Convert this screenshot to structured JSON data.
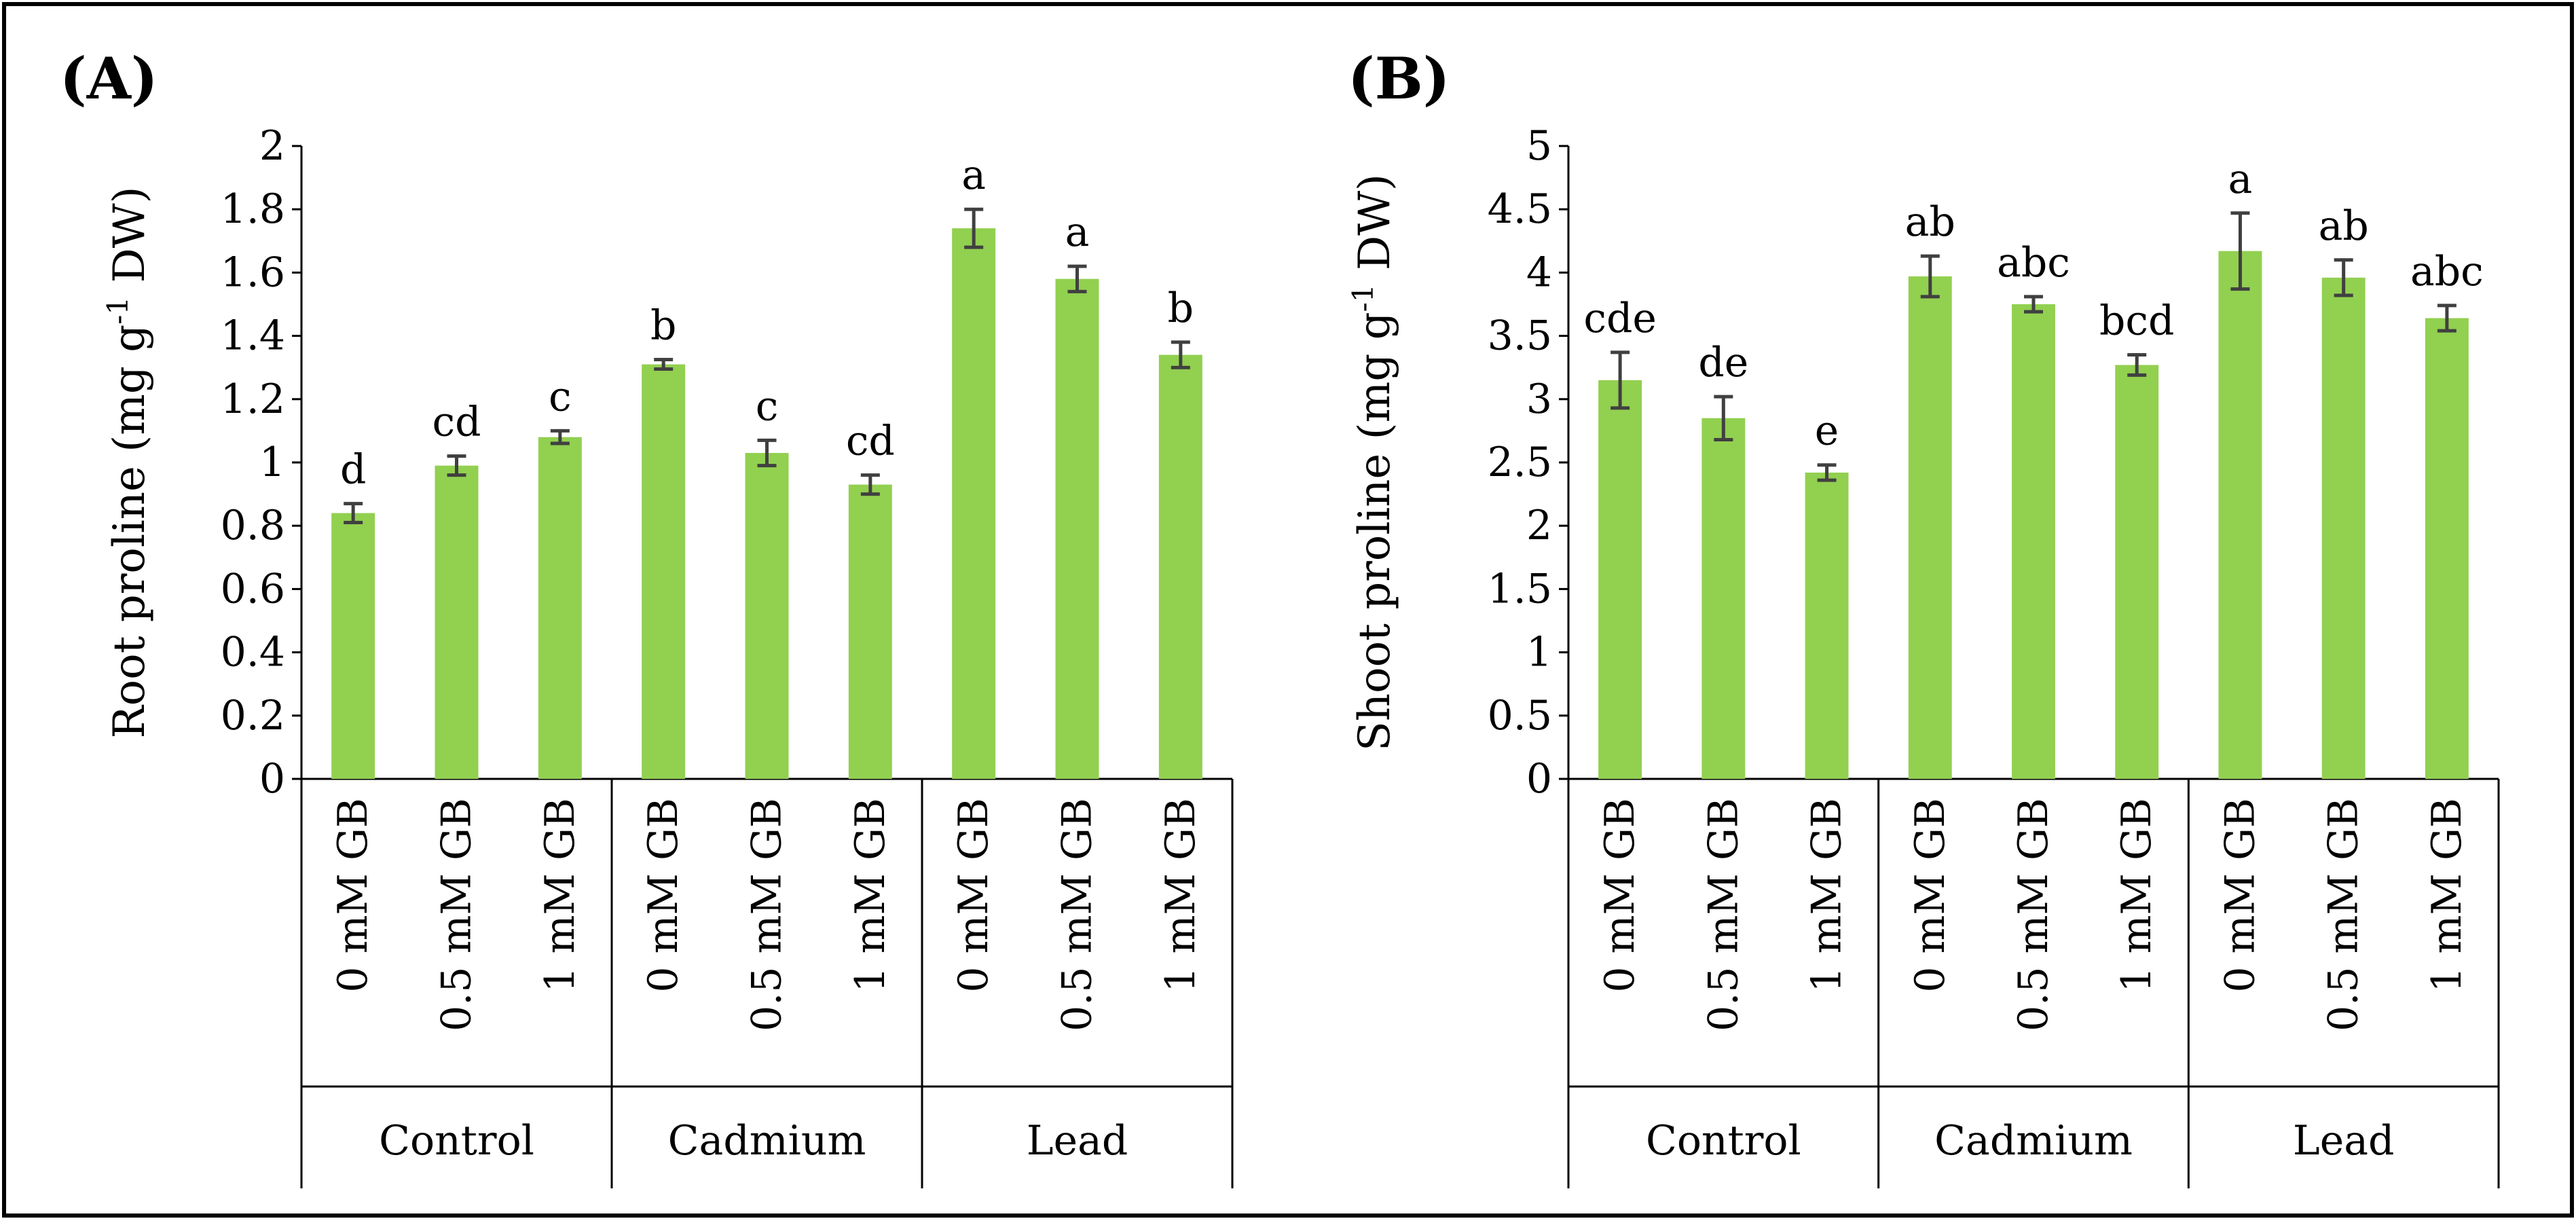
{
  "colors": {
    "bar": "#92d050",
    "axis": "#000000",
    "error": "#404040"
  },
  "chart_data": [
    {
      "type": "bar",
      "panel": "(A)",
      "ylabel_main": "Root proline (mg g",
      "ylabel_sup": "-1",
      "ylabel_tail": " DW)",
      "ylim": [
        0,
        2
      ],
      "yticks": [
        0,
        0.2,
        0.4,
        0.6,
        0.8,
        1,
        1.2,
        1.4,
        1.6,
        1.8,
        2
      ],
      "ytick_labels": [
        "0",
        "0.2",
        "0.4",
        "0.6",
        "0.8",
        "1",
        "1.2",
        "1.4",
        "1.6",
        "1.8",
        "2"
      ],
      "categories": [
        "0 mM GB",
        "0.5 mM GB",
        "1 mM GB",
        "0 mM GB",
        "0.5 mM GB",
        "1 mM GB",
        "0 mM GB",
        "0.5 mM GB",
        "1 mM GB"
      ],
      "groups": [
        "Control",
        "Cadmium",
        "Lead"
      ],
      "values": [
        0.84,
        0.99,
        1.08,
        1.31,
        1.03,
        0.93,
        1.74,
        1.58,
        1.34
      ],
      "errors": [
        0.03,
        0.03,
        0.02,
        0.015,
        0.04,
        0.03,
        0.06,
        0.04,
        0.04
      ],
      "significance": [
        "d",
        "cd",
        "c",
        "b",
        "c",
        "cd",
        "a",
        "a",
        "b"
      ]
    },
    {
      "type": "bar",
      "panel": "(B)",
      "ylabel_main": "Shoot proline (mg g",
      "ylabel_sup": "-1",
      "ylabel_tail": " DW)",
      "ylim": [
        0,
        5
      ],
      "yticks": [
        0,
        0.5,
        1,
        1.5,
        2,
        2.5,
        3,
        3.5,
        4,
        4.5,
        5
      ],
      "ytick_labels": [
        "0",
        "0.5",
        "1",
        "1.5",
        "2",
        "2.5",
        "3",
        "3.5",
        "4",
        "4.5",
        "5"
      ],
      "categories": [
        "0 mM GB",
        "0.5 mM GB",
        "1 mM GB",
        "0 mM GB",
        "0.5 mM GB",
        "1 mM GB",
        "0 mM GB",
        "0.5 mM GB",
        "1 mM GB"
      ],
      "groups": [
        "Control",
        "Cadmium",
        "Lead"
      ],
      "values": [
        3.15,
        2.85,
        2.42,
        3.97,
        3.75,
        3.27,
        4.17,
        3.96,
        3.64
      ],
      "errors": [
        0.22,
        0.17,
        0.06,
        0.16,
        0.06,
        0.08,
        0.3,
        0.14,
        0.1
      ],
      "significance": [
        "cde",
        "de",
        "e",
        "ab",
        "abc",
        "bcd",
        "a",
        "ab",
        "abc"
      ]
    }
  ]
}
